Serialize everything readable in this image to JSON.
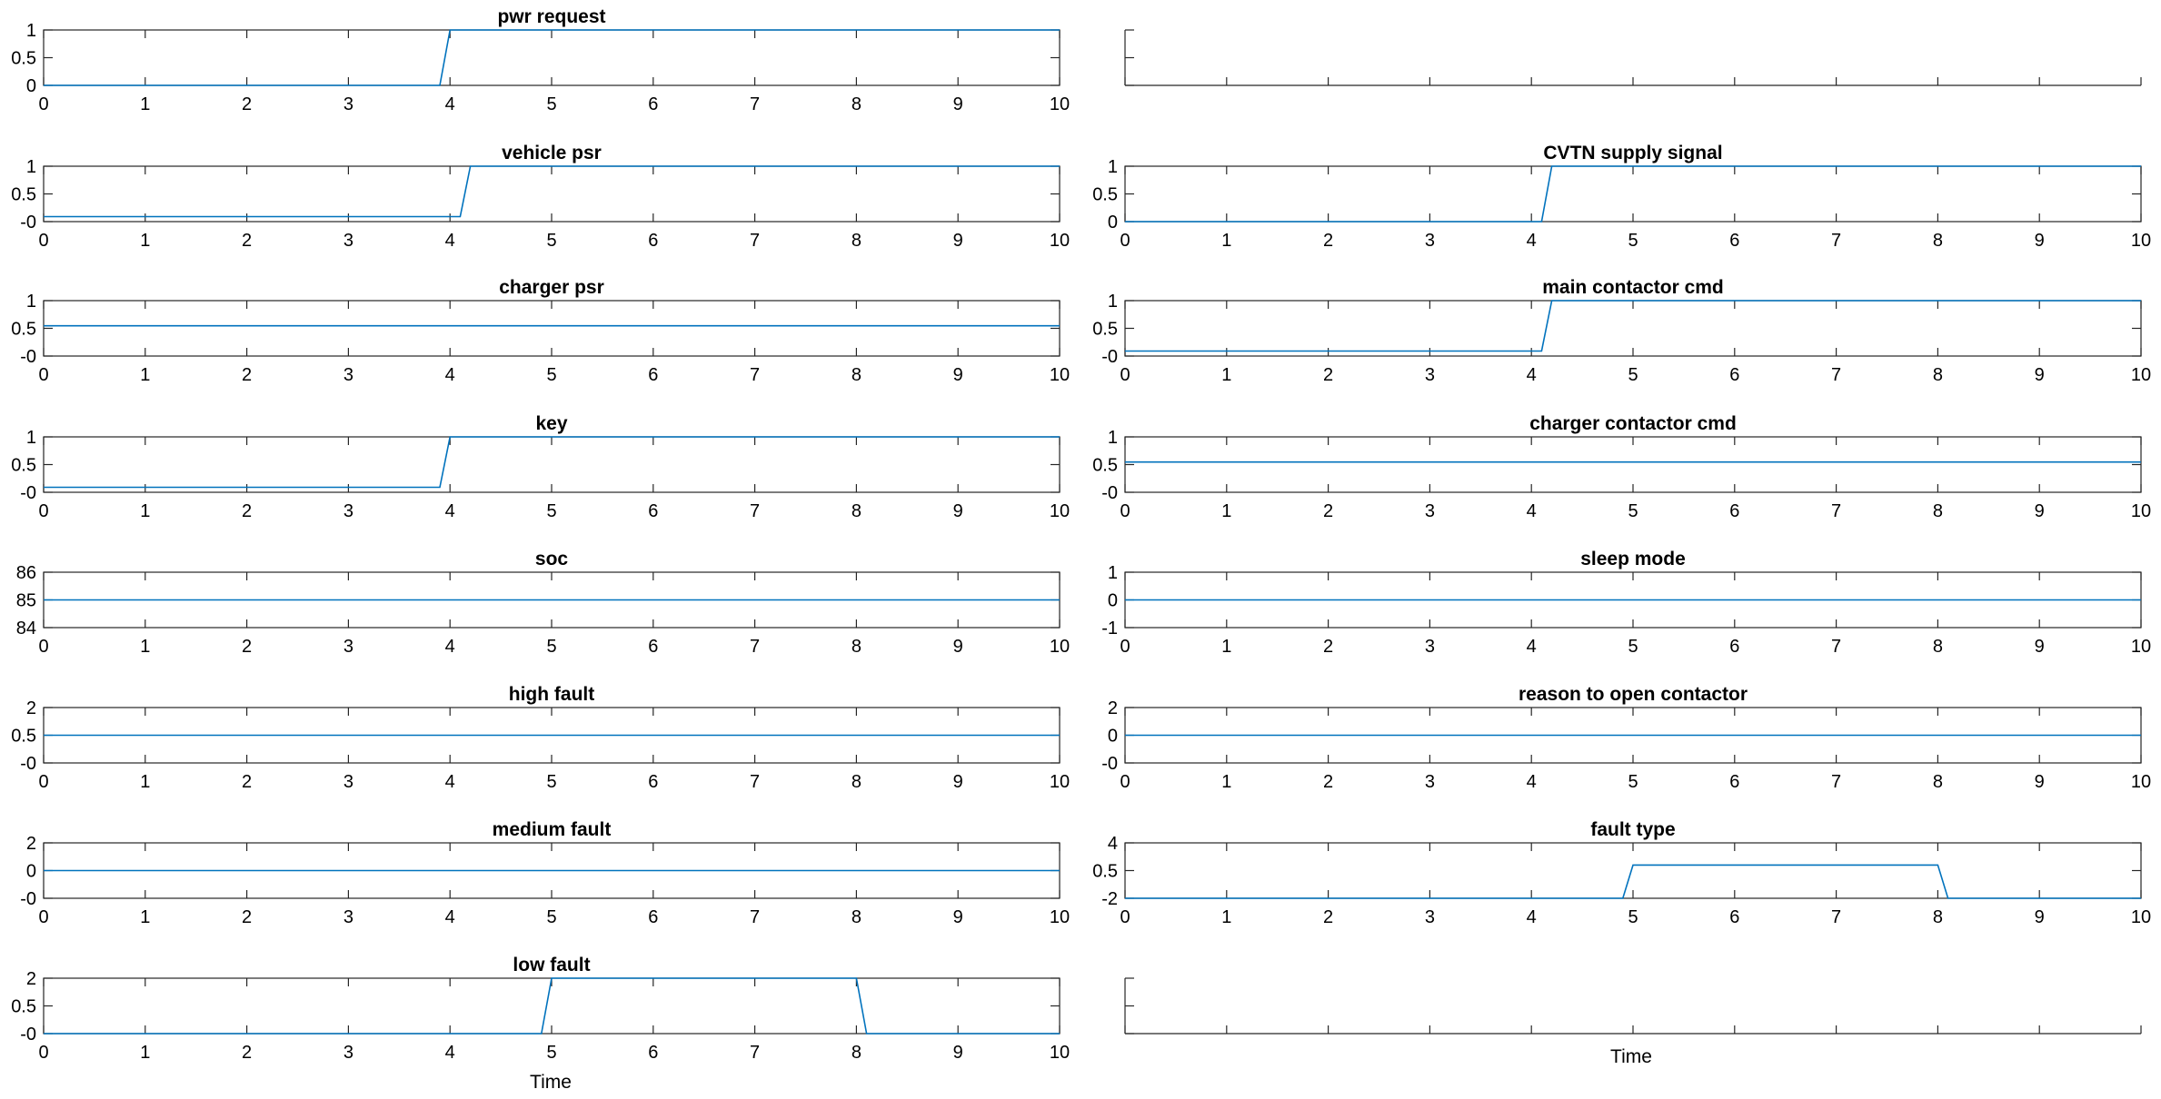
{
  "chart_data": [
    {
      "type": "line",
      "row": 0,
      "col": 0,
      "title": "pwr request",
      "ylim": [
        0,
        1
      ],
      "yticks": [
        "0",
        "0.5",
        "1"
      ],
      "xlim": [
        0,
        10
      ],
      "xticks": [
        "0",
        "1",
        "2",
        "3",
        "4",
        "5",
        "6",
        "7",
        "8",
        "9",
        "10"
      ],
      "series": [
        {
          "x": [
            0,
            3.9,
            4.0,
            10
          ],
          "y": [
            0,
            0,
            1,
            1
          ]
        }
      ]
    },
    {
      "type": "line",
      "row": 0,
      "col": 1,
      "title": "",
      "ylim": [
        0,
        1
      ],
      "yticks": [],
      "xlim": [
        0,
        10
      ],
      "xticks": [],
      "series": []
    },
    {
      "type": "line",
      "row": 1,
      "col": 0,
      "title": "vehicle psr",
      "ylim": [
        -0.1,
        1
      ],
      "yticks": [
        "-0",
        "0.5",
        "1"
      ],
      "xlim": [
        0,
        10
      ],
      "xticks": [
        "0",
        "1",
        "2",
        "3",
        "4",
        "5",
        "6",
        "7",
        "8",
        "9",
        "10"
      ],
      "series": [
        {
          "x": [
            0,
            4.1,
            4.2,
            10
          ],
          "y": [
            0,
            0,
            1,
            1
          ]
        }
      ]
    },
    {
      "type": "line",
      "row": 1,
      "col": 1,
      "title": "CVTN supply signal",
      "ylim": [
        0,
        1
      ],
      "yticks": [
        "0",
        "0.5",
        "1"
      ],
      "xlim": [
        0,
        10
      ],
      "xticks": [
        "0",
        "1",
        "2",
        "3",
        "4",
        "5",
        "6",
        "7",
        "8",
        "9",
        "10"
      ],
      "series": [
        {
          "x": [
            0,
            4.1,
            4.2,
            10
          ],
          "y": [
            0,
            0,
            1,
            1
          ]
        }
      ]
    },
    {
      "type": "line",
      "row": 2,
      "col": 0,
      "title": "charger psr",
      "ylim": [
        -0.1,
        1
      ],
      "yticks": [
        "-0",
        "0.5",
        "1"
      ],
      "xlim": [
        0,
        10
      ],
      "xticks": [
        "0",
        "1",
        "2",
        "3",
        "4",
        "5",
        "6",
        "7",
        "8",
        "9",
        "10"
      ],
      "series": [
        {
          "x": [
            0,
            10
          ],
          "y": [
            0.5,
            0.5
          ]
        }
      ]
    },
    {
      "type": "line",
      "row": 2,
      "col": 1,
      "title": "main contactor cmd",
      "ylim": [
        -0.1,
        1
      ],
      "yticks": [
        "-0",
        "0.5",
        "1"
      ],
      "xlim": [
        0,
        10
      ],
      "xticks": [
        "0",
        "1",
        "2",
        "3",
        "4",
        "5",
        "6",
        "7",
        "8",
        "9",
        "10"
      ],
      "series": [
        {
          "x": [
            0,
            4.1,
            4.2,
            10
          ],
          "y": [
            0,
            0,
            1,
            1
          ]
        }
      ]
    },
    {
      "type": "line",
      "row": 3,
      "col": 0,
      "title": "key",
      "ylim": [
        -0.1,
        1
      ],
      "yticks": [
        "-0",
        "0.5",
        "1"
      ],
      "xlim": [
        0,
        10
      ],
      "xticks": [
        "0",
        "1",
        "2",
        "3",
        "4",
        "5",
        "6",
        "7",
        "8",
        "9",
        "10"
      ],
      "series": [
        {
          "x": [
            0,
            3.9,
            4.0,
            10
          ],
          "y": [
            0,
            0,
            1,
            1
          ]
        }
      ]
    },
    {
      "type": "line",
      "row": 3,
      "col": 1,
      "title": "charger contactor cmd",
      "ylim": [
        -0.1,
        1
      ],
      "yticks": [
        "-0",
        "0.5",
        "1"
      ],
      "xlim": [
        0,
        10
      ],
      "xticks": [
        "0",
        "1",
        "2",
        "3",
        "4",
        "5",
        "6",
        "7",
        "8",
        "9",
        "10"
      ],
      "series": [
        {
          "x": [
            0,
            10
          ],
          "y": [
            0.5,
            0.5
          ]
        }
      ]
    },
    {
      "type": "line",
      "row": 4,
      "col": 0,
      "title": "soc",
      "ylim": [
        84,
        86
      ],
      "yticks": [
        "84",
        "85",
        "86"
      ],
      "xlim": [
        0,
        10
      ],
      "xticks": [
        "0",
        "1",
        "2",
        "3",
        "4",
        "5",
        "6",
        "7",
        "8",
        "9",
        "10"
      ],
      "series": [
        {
          "x": [
            0,
            10
          ],
          "y": [
            85,
            85
          ]
        }
      ]
    },
    {
      "type": "line",
      "row": 4,
      "col": 1,
      "title": "sleep mode",
      "ylim": [
        -1,
        1
      ],
      "yticks": [
        "-1",
        "0",
        "1"
      ],
      "xlim": [
        0,
        10
      ],
      "xticks": [
        "0",
        "1",
        "2",
        "3",
        "4",
        "5",
        "6",
        "7",
        "8",
        "9",
        "10"
      ],
      "series": [
        {
          "x": [
            0,
            10
          ],
          "y": [
            0,
            0
          ]
        }
      ]
    },
    {
      "type": "line",
      "row": 5,
      "col": 0,
      "title": "high fault",
      "ylim": [
        -1,
        2
      ],
      "yticks": [
        "-0",
        "0.5",
        "2"
      ],
      "xlim": [
        0,
        10
      ],
      "xticks": [
        "0",
        "1",
        "2",
        "3",
        "4",
        "5",
        "6",
        "7",
        "8",
        "9",
        "10"
      ],
      "series": [
        {
          "x": [
            0,
            10
          ],
          "y": [
            0.5,
            0.5
          ]
        }
      ]
    },
    {
      "type": "line",
      "row": 5,
      "col": 1,
      "title": "reason to open contactor",
      "ylim": [
        -1,
        2
      ],
      "yticks": [
        "-0",
        "0",
        "2"
      ],
      "xlim": [
        0,
        10
      ],
      "xticks": [
        "0",
        "1",
        "2",
        "3",
        "4",
        "5",
        "6",
        "7",
        "8",
        "9",
        "10"
      ],
      "series": [
        {
          "x": [
            0,
            10
          ],
          "y": [
            0.5,
            0.5
          ]
        }
      ]
    },
    {
      "type": "line",
      "row": 6,
      "col": 0,
      "title": "medium fault",
      "ylim": [
        -1,
        2
      ],
      "yticks": [
        "-0",
        "0",
        "2"
      ],
      "xlim": [
        0,
        10
      ],
      "xticks": [
        "0",
        "1",
        "2",
        "3",
        "4",
        "5",
        "6",
        "7",
        "8",
        "9",
        "10"
      ],
      "series": [
        {
          "x": [
            0,
            10
          ],
          "y": [
            0.5,
            0.5
          ]
        }
      ]
    },
    {
      "type": "line",
      "row": 6,
      "col": 1,
      "title": "fault type",
      "ylim": [
        -1,
        4
      ],
      "yticks": [
        "-2",
        "0.5",
        "4"
      ],
      "xlim": [
        0,
        10
      ],
      "xticks": [
        "0",
        "1",
        "2",
        "3",
        "4",
        "5",
        "6",
        "7",
        "8",
        "9",
        "10"
      ],
      "series": [
        {
          "x": [
            0,
            4.9,
            5.0,
            8.0,
            8.1,
            10
          ],
          "y": [
            -1,
            -1,
            2,
            2,
            -1,
            -1
          ]
        }
      ]
    },
    {
      "type": "line",
      "row": 7,
      "col": 0,
      "title": "low fault",
      "ylim": [
        -1,
        2
      ],
      "yticks": [
        "-0",
        "0.5",
        "2"
      ],
      "xlim": [
        0,
        10
      ],
      "xticks": [
        "0",
        "1",
        "2",
        "3",
        "4",
        "5",
        "6",
        "7",
        "8",
        "9",
        "10"
      ],
      "series": [
        {
          "x": [
            0,
            4.9,
            5.0,
            8.0,
            8.1,
            10
          ],
          "y": [
            -1,
            -1,
            2,
            2,
            -1,
            -1
          ]
        }
      ]
    },
    {
      "type": "line",
      "row": 7,
      "col": 1,
      "title": "",
      "ylim": [
        0,
        1
      ],
      "yticks": [],
      "xlim": [
        0,
        10
      ],
      "xticks": [],
      "series": []
    }
  ],
  "xlabel_left": "Time",
  "xlabel_right": "Time",
  "line_color": "#0072BD",
  "axis_color": "#262626"
}
